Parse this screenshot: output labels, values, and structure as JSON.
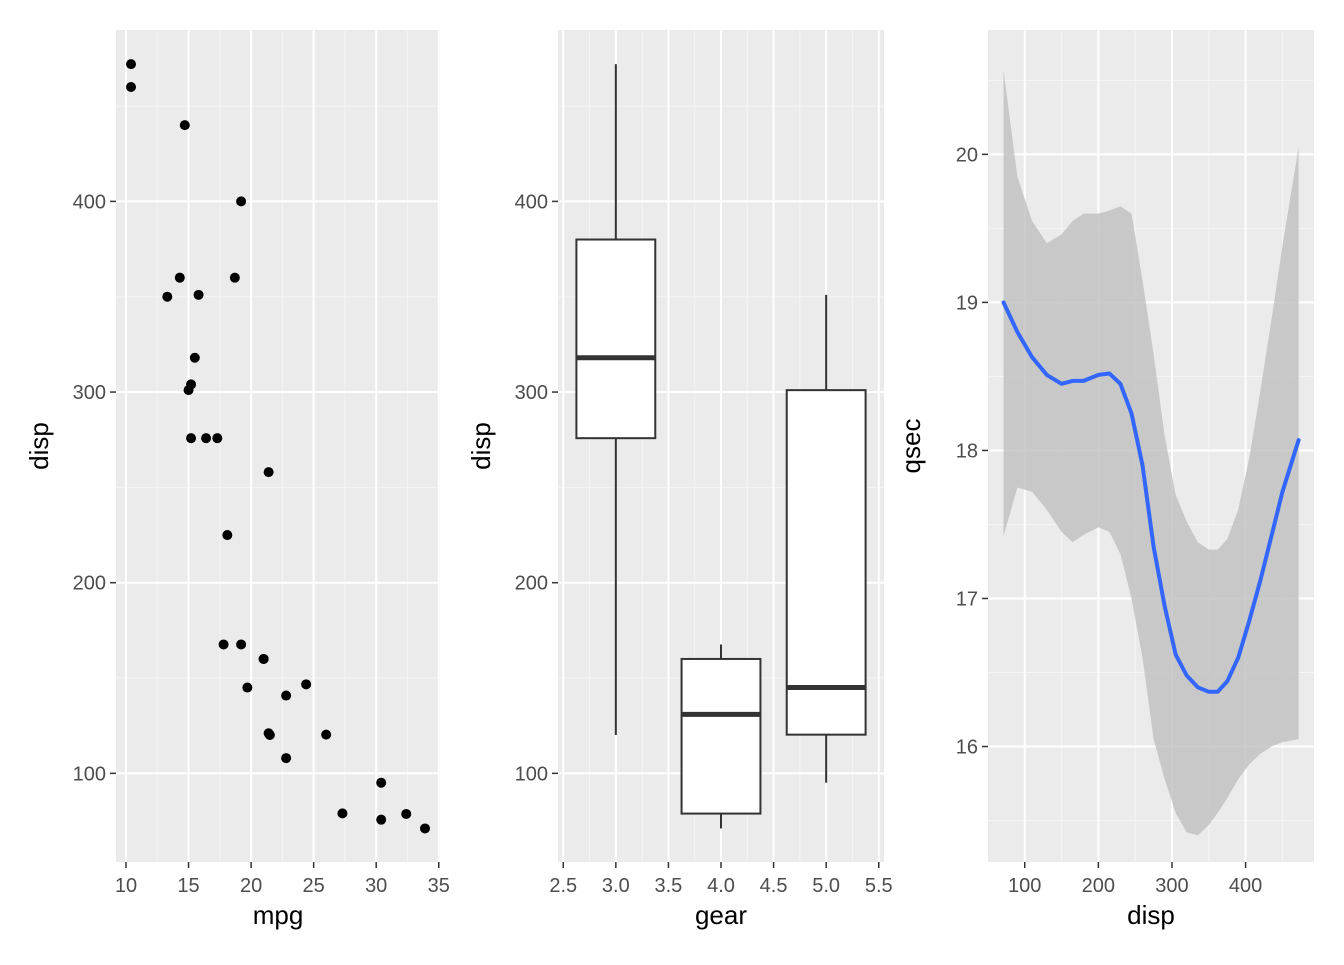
{
  "colors": {
    "panel_bg": "#ebebeb",
    "grid_major": "#ffffff",
    "grid_minor": "#f5f5f5",
    "ink": "#000000",
    "tick_text": "#4d4d4d",
    "box_line": "#333333",
    "smooth_line": "#3366ff",
    "ribbon": "#bfbfbf"
  },
  "chart_data": [
    {
      "type": "scatter",
      "xlabel": "mpg",
      "ylabel": "disp",
      "xlim": [
        9.2,
        35.1
      ],
      "ylim": [
        53.5,
        489.9
      ],
      "xticks": [
        10,
        15,
        20,
        25,
        30,
        35
      ],
      "yticks": [
        100,
        200,
        300,
        400
      ],
      "grid": true,
      "points": [
        [
          21.0,
          160
        ],
        [
          21.0,
          160
        ],
        [
          22.8,
          108
        ],
        [
          21.4,
          258
        ],
        [
          18.7,
          360
        ],
        [
          18.1,
          225
        ],
        [
          14.3,
          360
        ],
        [
          24.4,
          146.7
        ],
        [
          22.8,
          140.8
        ],
        [
          19.2,
          167.6
        ],
        [
          17.8,
          167.6
        ],
        [
          16.4,
          275.8
        ],
        [
          17.3,
          275.8
        ],
        [
          15.2,
          275.8
        ],
        [
          10.4,
          472
        ],
        [
          10.4,
          460
        ],
        [
          14.7,
          440
        ],
        [
          32.4,
          78.7
        ],
        [
          30.4,
          75.7
        ],
        [
          33.9,
          71.1
        ],
        [
          21.5,
          120.1
        ],
        [
          15.5,
          318
        ],
        [
          15.2,
          304
        ],
        [
          13.3,
          350
        ],
        [
          19.2,
          400
        ],
        [
          27.3,
          79
        ],
        [
          26.0,
          120.3
        ],
        [
          30.4,
          95.1
        ],
        [
          15.8,
          351
        ],
        [
          19.7,
          145
        ],
        [
          15.0,
          301
        ],
        [
          21.4,
          121
        ]
      ]
    },
    {
      "type": "box",
      "xlabel": "gear",
      "ylabel": "disp",
      "xlim": [
        2.45,
        5.55
      ],
      "ylim": [
        53.5,
        489.9
      ],
      "xticks": [
        2.5,
        3.0,
        3.5,
        4.0,
        4.5,
        5.0,
        5.5
      ],
      "xtick_labels": [
        "2.5",
        "3.0",
        "3.5",
        "4.0",
        "4.5",
        "5.0",
        "5.5"
      ],
      "yticks": [
        100,
        200,
        300,
        400
      ],
      "grid": true,
      "boxes": [
        {
          "x": 3,
          "lower_whisker": 120.1,
          "q1": 275.8,
          "median": 318,
          "q3": 380,
          "upper_whisker": 472
        },
        {
          "x": 4,
          "lower_whisker": 71.1,
          "q1": 78.9,
          "median": 130.9,
          "q3": 160,
          "upper_whisker": 167.6
        },
        {
          "x": 5,
          "lower_whisker": 95.1,
          "q1": 120.3,
          "median": 145,
          "q3": 301,
          "upper_whisker": 351
        }
      ]
    },
    {
      "type": "line",
      "xlabel": "disp",
      "ylabel": "qsec",
      "xlim": [
        50.1,
        492.9
      ],
      "ylim": [
        15.22,
        20.84
      ],
      "xticks": [
        100,
        200,
        300,
        400
      ],
      "yticks": [
        16,
        17,
        18,
        19,
        20
      ],
      "grid": true,
      "smooth": {
        "x": [
          71.1,
          90,
          110,
          130,
          150,
          165,
          180,
          200,
          215,
          230,
          245,
          260,
          275,
          290,
          305,
          320,
          335,
          350,
          362,
          375,
          390,
          405,
          420,
          435,
          450,
          472
        ],
        "y": [
          19.0,
          18.8,
          18.63,
          18.51,
          18.45,
          18.47,
          18.47,
          18.51,
          18.52,
          18.45,
          18.25,
          17.9,
          17.35,
          16.95,
          16.62,
          16.48,
          16.4,
          16.37,
          16.37,
          16.44,
          16.6,
          16.85,
          17.12,
          17.42,
          17.72,
          18.07
        ],
        "ymin": [
          17.42,
          17.75,
          17.72,
          17.6,
          17.45,
          17.38,
          17.43,
          17.48,
          17.45,
          17.3,
          17.0,
          16.6,
          16.05,
          15.78,
          15.55,
          15.42,
          15.4,
          15.47,
          15.55,
          15.65,
          15.78,
          15.88,
          15.95,
          16.0,
          16.03,
          16.05
        ],
        "ymax": [
          20.57,
          19.85,
          19.55,
          19.4,
          19.46,
          19.55,
          19.6,
          19.6,
          19.62,
          19.65,
          19.6,
          19.15,
          18.65,
          18.1,
          17.7,
          17.52,
          17.38,
          17.33,
          17.33,
          17.4,
          17.6,
          17.95,
          18.4,
          18.88,
          19.38,
          20.05
        ]
      }
    }
  ]
}
